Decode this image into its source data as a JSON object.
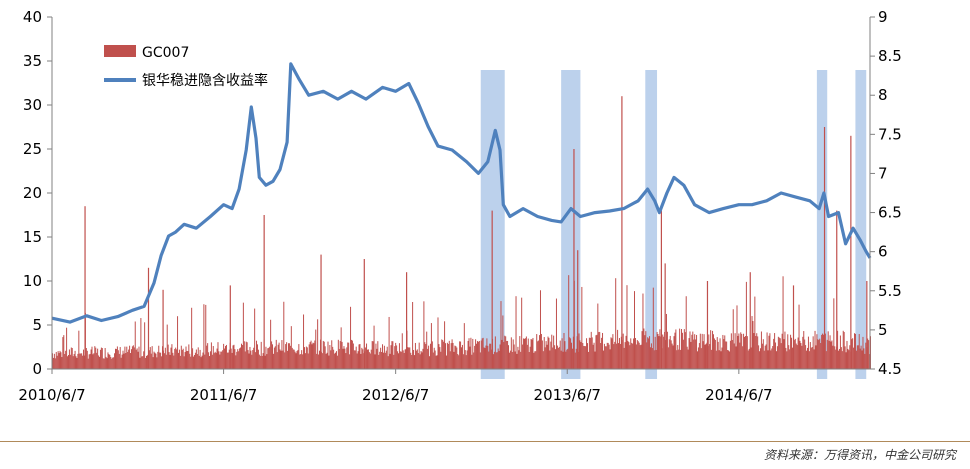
{
  "chart_data": {
    "type": "bar+line",
    "left_axis": {
      "min": 0,
      "max": 40,
      "ticks": [
        0,
        5,
        10,
        15,
        20,
        25,
        30,
        35,
        40
      ]
    },
    "right_axis": {
      "min": 4.5,
      "max": 9,
      "ticks": [
        4.5,
        5,
        5.5,
        6,
        6.5,
        7,
        7.5,
        8,
        8.5,
        9
      ]
    },
    "x_range": [
      "2010-06-07",
      "2015-03-13"
    ],
    "x_tick_labels": [
      {
        "label": "2010/6/7",
        "date": "2010-06-07"
      },
      {
        "label": "2011/6/7",
        "date": "2011-06-07"
      },
      {
        "label": "2012/6/7",
        "date": "2012-06-07"
      },
      {
        "label": "2013/6/7",
        "date": "2013-06-07"
      },
      {
        "label": "2014/6/7",
        "date": "2014-06-07"
      }
    ],
    "series": [
      {
        "name": "GC007",
        "kind": "bar",
        "axis": "left",
        "color": "#c0504d",
        "base_level": [
          [
            "2010-06-07",
            2.0
          ],
          [
            "2010-12-31",
            2.2
          ],
          [
            "2011-06-30",
            2.6
          ],
          [
            "2011-12-31",
            2.8
          ],
          [
            "2012-06-30",
            2.5
          ],
          [
            "2012-12-31",
            3.0
          ],
          [
            "2013-06-30",
            3.4
          ],
          [
            "2013-12-31",
            3.8
          ],
          [
            "2014-06-30",
            3.4
          ],
          [
            "2014-12-31",
            3.6
          ],
          [
            "2015-03-13",
            3.0
          ]
        ],
        "spikes": [
          [
            "2010-08-15",
            18.5
          ],
          [
            "2010-12-28",
            11.5
          ],
          [
            "2011-01-28",
            9.0
          ],
          [
            "2011-06-20",
            9.5
          ],
          [
            "2011-08-31",
            17.5
          ],
          [
            "2011-12-30",
            13.0
          ],
          [
            "2012-03-31",
            12.5
          ],
          [
            "2012-06-29",
            11.0
          ],
          [
            "2012-12-28",
            18.0
          ],
          [
            "2013-06-20",
            25.0
          ],
          [
            "2013-06-28",
            13.5
          ],
          [
            "2013-09-30",
            31.0
          ],
          [
            "2013-12-23",
            18.0
          ],
          [
            "2013-12-31",
            12.0
          ],
          [
            "2014-03-31",
            10.0
          ],
          [
            "2014-06-30",
            11.0
          ],
          [
            "2014-09-30",
            9.5
          ],
          [
            "2014-12-05",
            27.5
          ],
          [
            "2014-12-31",
            18.0
          ],
          [
            "2015-01-30",
            26.5
          ],
          [
            "2015-03-05",
            10.0
          ]
        ]
      },
      {
        "name": "银华稳进隐含收益率",
        "kind": "line",
        "axis": "right",
        "color": "#4f81bd",
        "points": [
          [
            "2010-06-07",
            5.15
          ],
          [
            "2010-07-15",
            5.1
          ],
          [
            "2010-08-20",
            5.18
          ],
          [
            "2010-09-20",
            5.12
          ],
          [
            "2010-10-25",
            5.17
          ],
          [
            "2010-11-25",
            5.25
          ],
          [
            "2010-12-20",
            5.3
          ],
          [
            "2011-01-10",
            5.6
          ],
          [
            "2011-01-25",
            5.95
          ],
          [
            "2011-02-10",
            6.2
          ],
          [
            "2011-02-25",
            6.25
          ],
          [
            "2011-03-15",
            6.35
          ],
          [
            "2011-04-10",
            6.3
          ],
          [
            "2011-05-10",
            6.45
          ],
          [
            "2011-06-07",
            6.6
          ],
          [
            "2011-06-25",
            6.55
          ],
          [
            "2011-07-10",
            6.8
          ],
          [
            "2011-07-25",
            7.3
          ],
          [
            "2011-08-05",
            7.85
          ],
          [
            "2011-08-15",
            7.45
          ],
          [
            "2011-08-22",
            6.95
          ],
          [
            "2011-09-05",
            6.85
          ],
          [
            "2011-09-20",
            6.9
          ],
          [
            "2011-10-05",
            7.05
          ],
          [
            "2011-10-20",
            7.4
          ],
          [
            "2011-10-28",
            8.4
          ],
          [
            "2011-11-15",
            8.2
          ],
          [
            "2011-12-05",
            8.0
          ],
          [
            "2012-01-05",
            8.05
          ],
          [
            "2012-02-05",
            7.95
          ],
          [
            "2012-03-05",
            8.05
          ],
          [
            "2012-04-05",
            7.95
          ],
          [
            "2012-05-10",
            8.1
          ],
          [
            "2012-06-07",
            8.05
          ],
          [
            "2012-07-05",
            8.15
          ],
          [
            "2012-07-25",
            7.9
          ],
          [
            "2012-08-15",
            7.6
          ],
          [
            "2012-09-05",
            7.35
          ],
          [
            "2012-10-05",
            7.3
          ],
          [
            "2012-11-05",
            7.15
          ],
          [
            "2012-11-30",
            7.0
          ],
          [
            "2012-12-20",
            7.15
          ],
          [
            "2013-01-05",
            7.55
          ],
          [
            "2013-01-15",
            7.3
          ],
          [
            "2013-01-22",
            6.6
          ],
          [
            "2013-02-05",
            6.45
          ],
          [
            "2013-03-05",
            6.55
          ],
          [
            "2013-04-05",
            6.45
          ],
          [
            "2013-05-05",
            6.4
          ],
          [
            "2013-05-25",
            6.38
          ],
          [
            "2013-06-15",
            6.55
          ],
          [
            "2013-07-05",
            6.45
          ],
          [
            "2013-08-05",
            6.5
          ],
          [
            "2013-09-05",
            6.52
          ],
          [
            "2013-10-05",
            6.55
          ],
          [
            "2013-11-05",
            6.65
          ],
          [
            "2013-11-25",
            6.8
          ],
          [
            "2013-12-10",
            6.65
          ],
          [
            "2013-12-20",
            6.5
          ],
          [
            "2014-01-05",
            6.75
          ],
          [
            "2014-01-20",
            6.95
          ],
          [
            "2014-02-10",
            6.85
          ],
          [
            "2014-03-05",
            6.6
          ],
          [
            "2014-04-05",
            6.5
          ],
          [
            "2014-05-05",
            6.55
          ],
          [
            "2014-06-07",
            6.6
          ],
          [
            "2014-07-05",
            6.6
          ],
          [
            "2014-08-05",
            6.65
          ],
          [
            "2014-09-05",
            6.75
          ],
          [
            "2014-10-05",
            6.7
          ],
          [
            "2014-11-05",
            6.65
          ],
          [
            "2014-11-25",
            6.55
          ],
          [
            "2014-12-05",
            6.75
          ],
          [
            "2014-12-15",
            6.45
          ],
          [
            "2015-01-05",
            6.5
          ],
          [
            "2015-01-20",
            6.1
          ],
          [
            "2015-02-05",
            6.3
          ],
          [
            "2015-02-20",
            6.15
          ],
          [
            "2015-03-05",
            6.0
          ],
          [
            "2015-03-13",
            5.92
          ]
        ]
      }
    ],
    "highlight_periods": [
      [
        "2012-12-05",
        "2013-01-25"
      ],
      [
        "2013-05-25",
        "2013-07-05"
      ],
      [
        "2013-11-20",
        "2013-12-15"
      ],
      [
        "2014-11-20",
        "2014-12-12"
      ],
      [
        "2015-02-10",
        "2015-03-05"
      ]
    ],
    "highlight_color": "#a6c2e6",
    "grid": false,
    "legend_position": "top-left"
  },
  "legend": {
    "bar_label": "GC007",
    "line_label": "银华稳进隐含收益率"
  },
  "source_note": "资料来源：万得资讯，中金公司研究"
}
